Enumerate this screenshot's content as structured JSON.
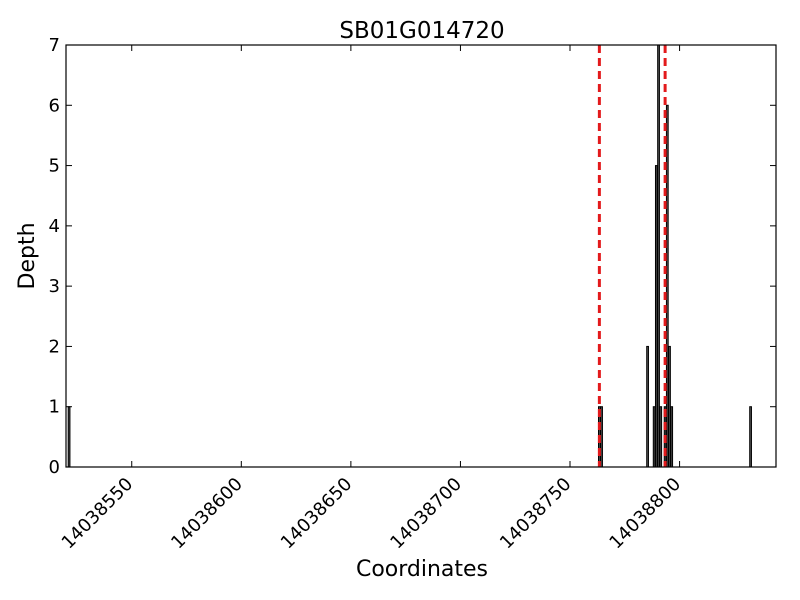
{
  "chart_data": {
    "type": "bar",
    "title": "SB01G014720",
    "xlabel": "Coordinates",
    "ylabel": "Depth",
    "xlim": [
      14038520,
      14038844
    ],
    "ylim": [
      0,
      7
    ],
    "xticks": [
      14038550,
      14038600,
      14038650,
      14038700,
      14038750,
      14038800
    ],
    "yticks": [
      0,
      1,
      2,
      3,
      4,
      5,
      6,
      7
    ],
    "bars": [
      {
        "x": 14038521,
        "y": 1
      },
      {
        "x": 14038763,
        "y": 1
      },
      {
        "x": 14038764,
        "y": 1
      },
      {
        "x": 14038785,
        "y": 2
      },
      {
        "x": 14038788,
        "y": 1
      },
      {
        "x": 14038789,
        "y": 5
      },
      {
        "x": 14038790,
        "y": 7
      },
      {
        "x": 14038791,
        "y": 1
      },
      {
        "x": 14038793,
        "y": 1
      },
      {
        "x": 14038794,
        "y": 6
      },
      {
        "x": 14038795,
        "y": 2
      },
      {
        "x": 14038796,
        "y": 1
      },
      {
        "x": 14038832,
        "y": 1
      }
    ],
    "vlines": [
      {
        "x": 14038763,
        "color": "#e31a1c",
        "style": "dashed"
      },
      {
        "x": 14038793,
        "color": "#e31a1c",
        "style": "dashed"
      }
    ],
    "bar_color": "#555555",
    "bar_edge_color": "#000000",
    "grid": false,
    "legend": "none"
  }
}
